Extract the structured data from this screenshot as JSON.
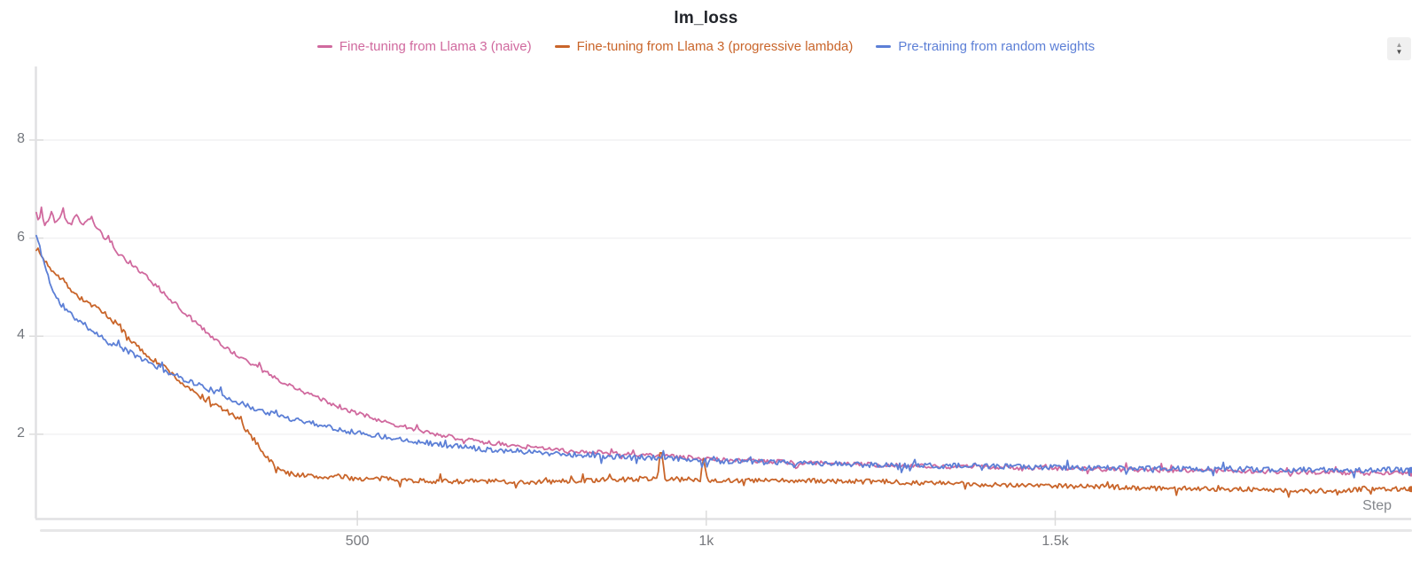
{
  "panel": {
    "stepper_up_icon": "▲",
    "stepper_down_icon": "▼"
  },
  "chart_data": {
    "type": "line",
    "title": "lm_loss",
    "xlabel": "Step",
    "ylabel": "",
    "xlim": [
      40,
      2010
    ],
    "ylim": [
      0.28,
      9.5
    ],
    "grid": "horizontal",
    "legend_position": "top-center",
    "x_ticks": [
      {
        "value": 500,
        "label": "500"
      },
      {
        "value": 1000,
        "label": "1k"
      },
      {
        "value": 1500,
        "label": "1.5k"
      }
    ],
    "y_ticks": [
      {
        "value": 2,
        "label": "2"
      },
      {
        "value": 4,
        "label": "4"
      },
      {
        "value": 6,
        "label": "6"
      },
      {
        "value": 8,
        "label": "8"
      }
    ],
    "series": [
      {
        "name": "Fine-tuning from Llama 3 (naive)",
        "color": "#D0699E",
        "points": [
          [
            40,
            6.5
          ],
          [
            44,
            6.3
          ],
          [
            47,
            6.65
          ],
          [
            51,
            6.28
          ],
          [
            57,
            6.32
          ],
          [
            62,
            6.58
          ],
          [
            67,
            6.28
          ],
          [
            72,
            6.35
          ],
          [
            78,
            6.62
          ],
          [
            84,
            6.28
          ],
          [
            90,
            6.3
          ],
          [
            97,
            6.5
          ],
          [
            104,
            6.27
          ],
          [
            112,
            6.3
          ],
          [
            118,
            6.45
          ],
          [
            125,
            6.22
          ],
          [
            140,
            5.98
          ],
          [
            153,
            5.74
          ],
          [
            166,
            5.58
          ],
          [
            179,
            5.45
          ],
          [
            210,
            5.05
          ],
          [
            242,
            4.62
          ],
          [
            274,
            4.2
          ],
          [
            306,
            3.81
          ],
          [
            337,
            3.52
          ],
          [
            369,
            3.27
          ],
          [
            401,
            3.0
          ],
          [
            433,
            2.81
          ],
          [
            464,
            2.62
          ],
          [
            496,
            2.45
          ],
          [
            528,
            2.3
          ],
          [
            560,
            2.18
          ],
          [
            591,
            2.07
          ],
          [
            623,
            1.97
          ],
          [
            655,
            1.89
          ],
          [
            687,
            1.82
          ],
          [
            719,
            1.77
          ],
          [
            751,
            1.73
          ],
          [
            814,
            1.65
          ],
          [
            878,
            1.6
          ],
          [
            941,
            1.55
          ],
          [
            1005,
            1.5
          ],
          [
            1068,
            1.46
          ],
          [
            1132,
            1.42
          ],
          [
            1259,
            1.37
          ],
          [
            1386,
            1.33
          ],
          [
            1513,
            1.3
          ],
          [
            1640,
            1.27
          ],
          [
            1767,
            1.25
          ],
          [
            1895,
            1.22
          ],
          [
            2010,
            1.2
          ]
        ]
      },
      {
        "name": "Fine-tuning from Llama 3 (progressive lambda)",
        "color": "#C9652A",
        "points": [
          [
            40,
            5.8
          ],
          [
            51,
            5.55
          ],
          [
            64,
            5.35
          ],
          [
            77,
            5.15
          ],
          [
            90,
            4.95
          ],
          [
            102,
            4.78
          ],
          [
            115,
            4.68
          ],
          [
            128,
            4.55
          ],
          [
            140,
            4.4
          ],
          [
            153,
            4.28
          ],
          [
            166,
            4.1
          ],
          [
            179,
            3.85
          ],
          [
            204,
            3.55
          ],
          [
            226,
            3.35
          ],
          [
            242,
            3.12
          ],
          [
            261,
            2.9
          ],
          [
            280,
            2.72
          ],
          [
            299,
            2.58
          ],
          [
            318,
            2.42
          ],
          [
            331,
            2.28
          ],
          [
            344,
            2.02
          ],
          [
            357,
            1.8
          ],
          [
            369,
            1.55
          ],
          [
            382,
            1.35
          ],
          [
            392,
            1.25
          ],
          [
            401,
            1.2
          ],
          [
            420,
            1.17
          ],
          [
            446,
            1.12
          ],
          [
            471,
            1.14
          ],
          [
            496,
            1.1
          ],
          [
            522,
            1.08
          ],
          [
            547,
            1.1
          ],
          [
            573,
            1.06
          ],
          [
            623,
            1.04
          ],
          [
            687,
            1.04
          ],
          [
            751,
            1.02
          ],
          [
            814,
            1.05
          ],
          [
            878,
            1.08
          ],
          [
            930,
            1.1
          ],
          [
            935,
            1.77
          ],
          [
            941,
            1.08
          ],
          [
            990,
            1.08
          ],
          [
            996,
            1.5
          ],
          [
            1002,
            1.06
          ],
          [
            1132,
            1.05
          ],
          [
            1259,
            1.03
          ],
          [
            1386,
            0.98
          ],
          [
            1513,
            0.95
          ],
          [
            1640,
            0.9
          ],
          [
            1767,
            0.88
          ],
          [
            1895,
            0.82
          ],
          [
            1950,
            0.9
          ],
          [
            2010,
            0.88
          ]
        ]
      },
      {
        "name": "Pre-training from random weights",
        "color": "#5C7FD6",
        "points": [
          [
            40,
            6.05
          ],
          [
            51,
            5.5
          ],
          [
            64,
            4.9
          ],
          [
            77,
            4.6
          ],
          [
            90,
            4.44
          ],
          [
            102,
            4.3
          ],
          [
            115,
            4.17
          ],
          [
            128,
            4.05
          ],
          [
            140,
            3.9
          ],
          [
            159,
            3.78
          ],
          [
            179,
            3.63
          ],
          [
            210,
            3.4
          ],
          [
            242,
            3.18
          ],
          [
            274,
            3.0
          ],
          [
            306,
            2.81
          ],
          [
            337,
            2.6
          ],
          [
            369,
            2.45
          ],
          [
            401,
            2.33
          ],
          [
            433,
            2.24
          ],
          [
            465,
            2.13
          ],
          [
            496,
            2.04
          ],
          [
            560,
            1.91
          ],
          [
            623,
            1.78
          ],
          [
            687,
            1.69
          ],
          [
            751,
            1.64
          ],
          [
            814,
            1.58
          ],
          [
            878,
            1.53
          ],
          [
            941,
            1.51
          ],
          [
            1005,
            1.46
          ],
          [
            1132,
            1.41
          ],
          [
            1259,
            1.37
          ],
          [
            1386,
            1.35
          ],
          [
            1513,
            1.32
          ],
          [
            1640,
            1.3
          ],
          [
            1767,
            1.28
          ],
          [
            1895,
            1.27
          ],
          [
            2010,
            1.27
          ]
        ]
      }
    ]
  }
}
